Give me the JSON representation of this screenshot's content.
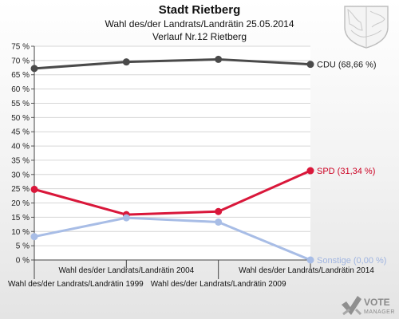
{
  "title": "Stadt Rietberg",
  "subtitle": "Wahl des/der Landrats/Landrätin 25.05.2014",
  "subtitle2": "Verlauf Nr.12 Rietberg",
  "logo": {
    "word1": "VOTE",
    "word2": "MANAGER"
  },
  "chart_data": {
    "type": "line",
    "x": [
      "Wahl des/der Landrats/Landrätin 1999",
      "Wahl des/der Landrats/Landrätin 2004",
      "Wahl des/der Landrats/Landrätin 2009",
      "Wahl des/der Landrats/Landrätin 2014"
    ],
    "ylim": [
      0,
      75
    ],
    "ytick_step": 5,
    "ytick_suffix": " %",
    "grid": "horizontal",
    "series": [
      {
        "name": "CDU",
        "color": "#4a4a4a",
        "values": [
          67.2,
          69.5,
          70.4,
          68.66
        ],
        "end_label": "CDU (68,66 %)",
        "label_color": "#222222"
      },
      {
        "name": "SPD",
        "color": "#d9173a",
        "values": [
          24.8,
          15.9,
          17.0,
          31.34
        ],
        "end_label": "SPD (31,34 %)",
        "label_color": "#cc0022"
      },
      {
        "name": "Sonstige",
        "color": "#a8bde6",
        "values": [
          8.2,
          14.8,
          13.3,
          0.0
        ],
        "end_label": "Sonstige (0,00 %)",
        "label_color": "#9fb4e0"
      }
    ]
  }
}
